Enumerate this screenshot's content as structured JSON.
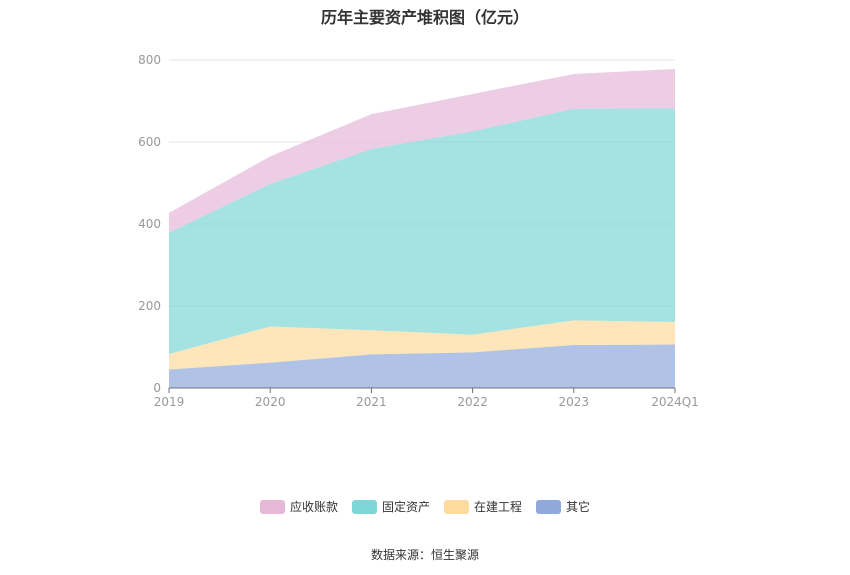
{
  "chart_data": {
    "type": "area",
    "stacked": true,
    "title": "历年主要资产堆积图（亿元）",
    "categories": [
      "2019",
      "2020",
      "2021",
      "2022",
      "2023",
      "2024Q1"
    ],
    "ylim": [
      0,
      800
    ],
    "yticks": [
      0,
      200,
      400,
      600,
      800
    ],
    "grid": true,
    "legend_position": "bottom",
    "series": [
      {
        "name": "其它",
        "color": "#8fa9db",
        "values": [
          45,
          62,
          82,
          87,
          105,
          106
        ]
      },
      {
        "name": "在建工程",
        "color": "#fddb9c",
        "values": [
          38,
          88,
          59,
          43,
          60,
          55
        ]
      },
      {
        "name": "固定资产",
        "color": "#7fd6d6",
        "values": [
          296,
          348,
          442,
          496,
          516,
          521
        ]
      },
      {
        "name": "应收账款",
        "color": "#e6b8d8",
        "values": [
          48,
          67,
          85,
          91,
          85,
          96
        ]
      }
    ]
  },
  "legend_order": [
    "应收账款",
    "固定资产",
    "在建工程",
    "其它"
  ],
  "source": "数据来源：恒生聚源"
}
